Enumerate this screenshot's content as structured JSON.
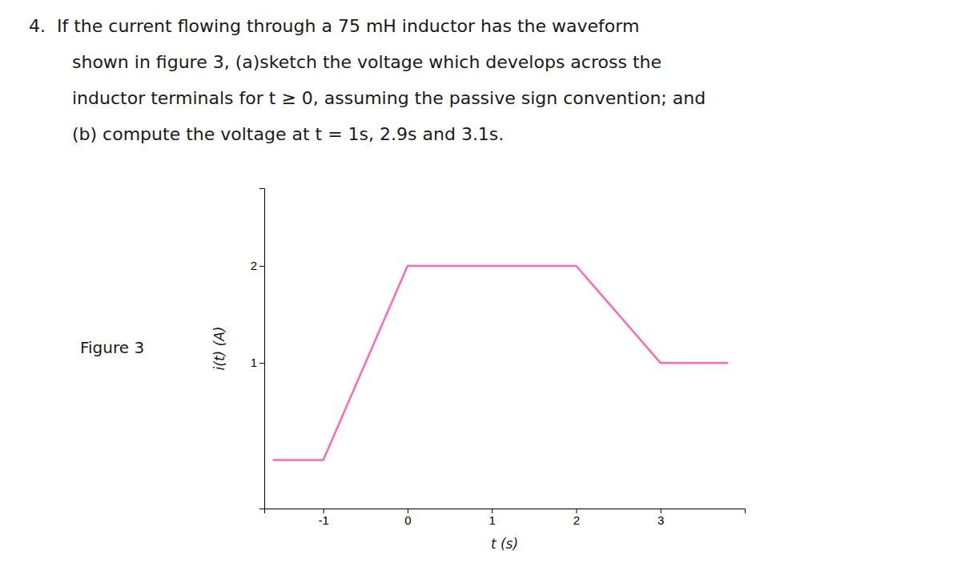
{
  "chart_data": {
    "type": "line",
    "annotations": [
      "4.  If the current flowing through a 75 mH inductor has the waveform",
      "shown in figure 3, (a)sketch the voltage which develops across the",
      "inductor terminals for t ≥ 0, assuming the passive sign convention; and",
      "(b) compute the voltage at t = 1s, 2.9s and 3.1s.",
      "Figure 3"
    ],
    "xlabel": "t (s)",
    "ylabel": "i(t) (A)",
    "x": [
      -1.6,
      -1.0,
      0.0,
      2.0,
      3.0,
      3.8
    ],
    "values": [
      0.0,
      0.0,
      2.0,
      2.0,
      1.0,
      1.0
    ],
    "color": "#FF69B4",
    "xlim": [
      -1.7,
      4.0
    ],
    "ylim": [
      -0.5,
      2.8
    ],
    "xticks": [
      -1,
      0,
      1,
      2,
      3
    ],
    "yticks": [
      1,
      2
    ],
    "grid": false
  }
}
